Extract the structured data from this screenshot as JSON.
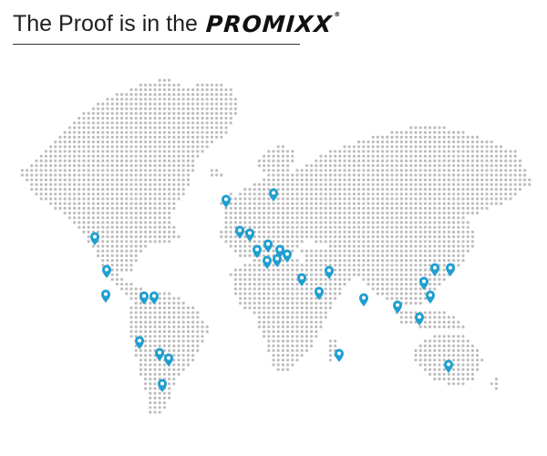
{
  "header": {
    "tagline": "The Proof is in the",
    "brand": "PROMIXX",
    "registered_mark": "®"
  },
  "colors": {
    "dot": "#bdbdbd",
    "pin": "#1f9fd0",
    "pin_center": "#ffffff",
    "rule": "#333333"
  },
  "icons": {
    "pin": "location-pin-icon"
  },
  "map": {
    "style": "dotted world map",
    "pin_count": 31,
    "regions_with_pins": [
      "North America",
      "Central America",
      "South America",
      "Europe",
      "Middle East",
      "Africa",
      "South Asia",
      "East Asia",
      "Southeast Asia",
      "Australia"
    ]
  }
}
